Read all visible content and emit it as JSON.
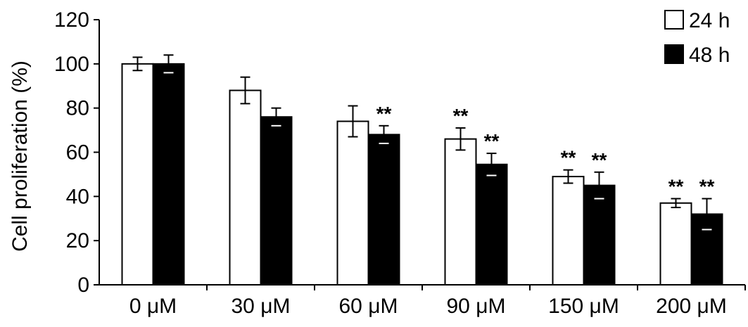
{
  "chart_data": {
    "type": "bar",
    "title": "",
    "xlabel": "",
    "ylabel": "Cell proliferation (%)",
    "ylim": [
      0,
      120
    ],
    "yticks": [
      0,
      20,
      40,
      60,
      80,
      100,
      120
    ],
    "categories": [
      "0 μM",
      "30 μM",
      "60 μM",
      "90 μM",
      "150 μM",
      "200 μM"
    ],
    "legend_position": "top-right",
    "grid": false,
    "series": [
      {
        "name": "24 h",
        "color": "#ffffff",
        "values": [
          100,
          88,
          74,
          66,
          49,
          37
        ],
        "errors": [
          3,
          6,
          7,
          5,
          3,
          2
        ],
        "significance": [
          "",
          "",
          "",
          "**",
          "**",
          "**"
        ]
      },
      {
        "name": "48 h",
        "color": "#000000",
        "values": [
          100,
          76,
          68,
          54.5,
          45,
          32
        ],
        "errors": [
          4,
          4,
          4,
          5,
          6,
          7
        ],
        "significance": [
          "",
          "",
          "**",
          "**",
          "**",
          "**"
        ]
      }
    ]
  }
}
